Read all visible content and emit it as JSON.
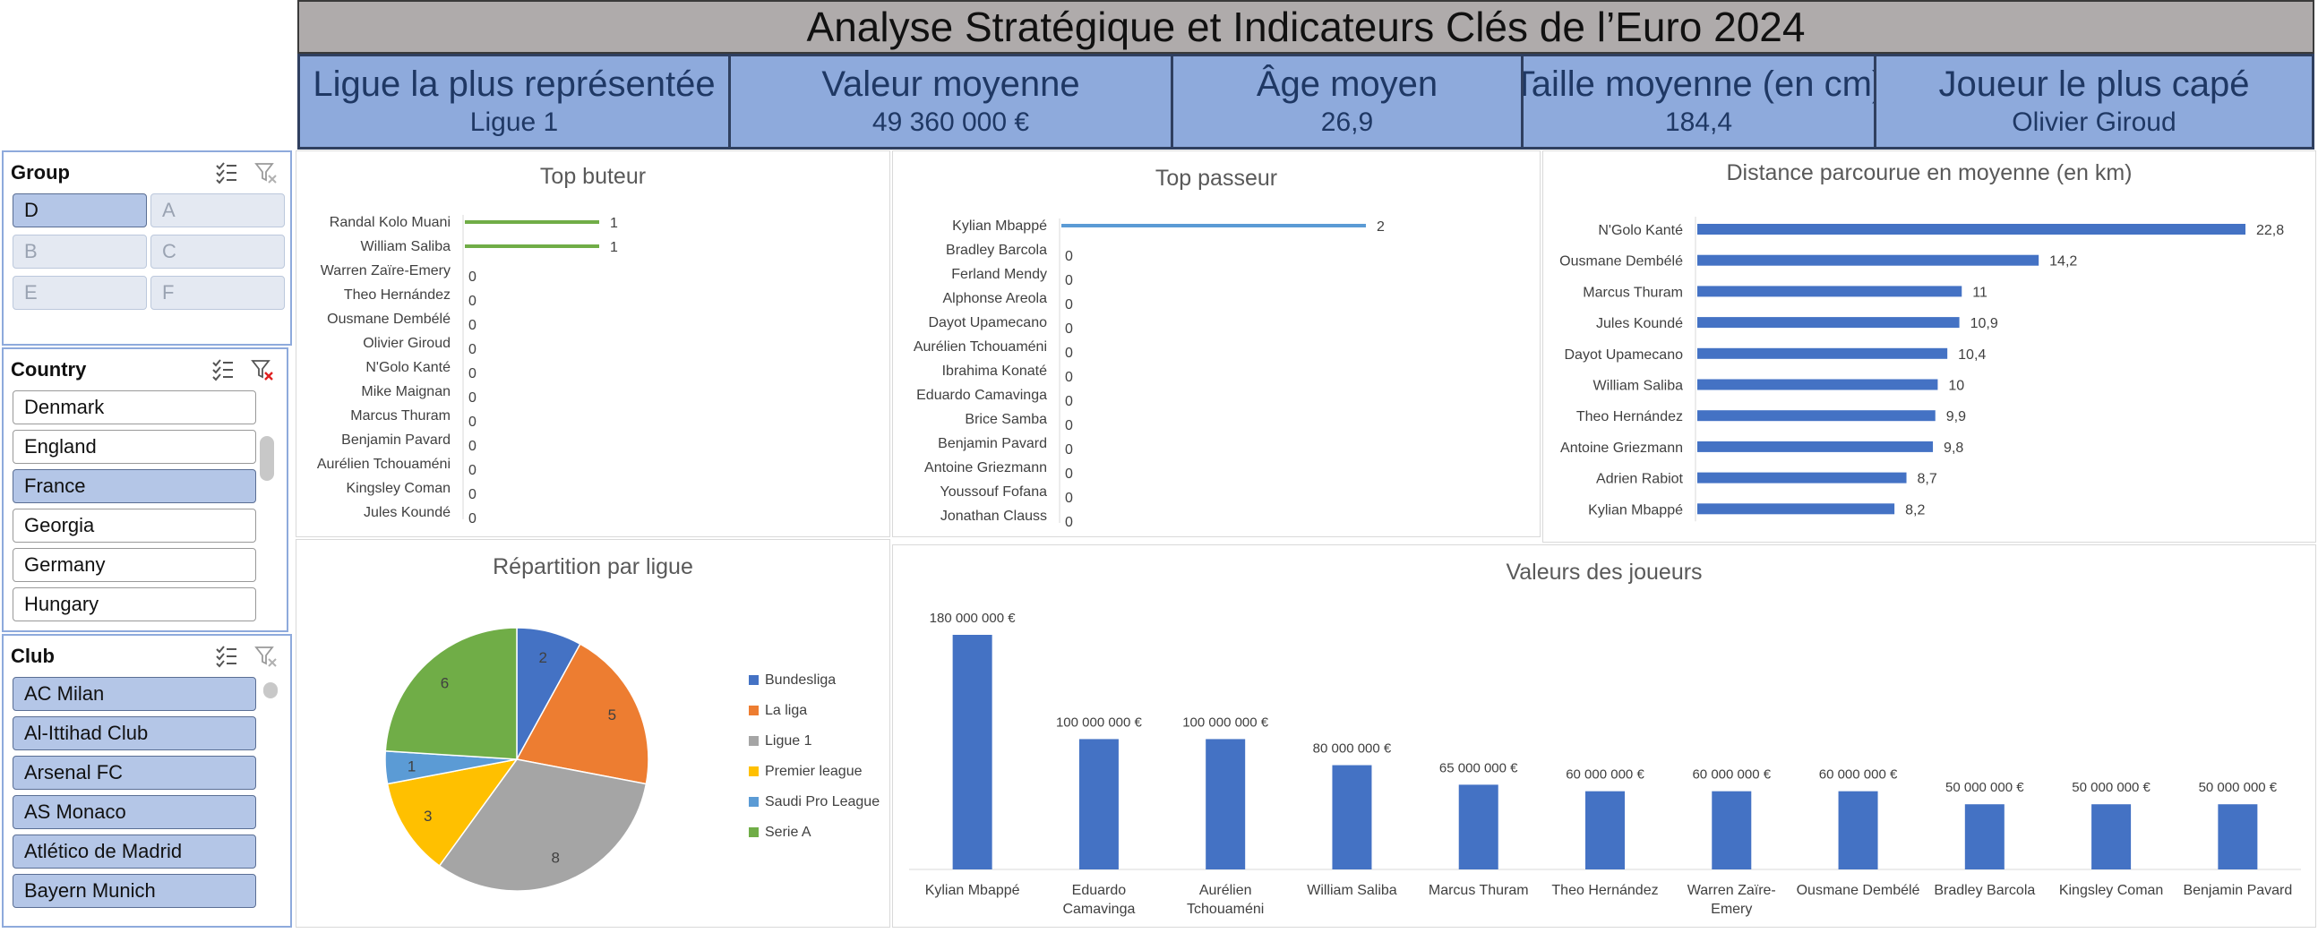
{
  "header": {
    "title": "Analyse Stratégique et Indicateurs Clés de l’Euro 2024"
  },
  "kpis": [
    {
      "label": "Ligue la plus représentée",
      "value": "Ligue 1"
    },
    {
      "label": "Valeur moyenne",
      "value": "49 360 000 €"
    },
    {
      "label": "Âge moyen",
      "value": "26,9"
    },
    {
      "label": "Taille moyenne (en cm)",
      "value": "184,4"
    },
    {
      "label": "Joueur le plus capé",
      "value": "Olivier Giroud"
    }
  ],
  "slicers": {
    "group": {
      "title": "Group",
      "items": [
        {
          "label": "D",
          "selected": true
        },
        {
          "label": "A",
          "selected": false
        },
        {
          "label": "B",
          "selected": false
        },
        {
          "label": "C",
          "selected": false
        },
        {
          "label": "E",
          "selected": false
        },
        {
          "label": "F",
          "selected": false
        }
      ]
    },
    "country": {
      "title": "Country",
      "items": [
        {
          "label": "Denmark",
          "selected": false
        },
        {
          "label": "England",
          "selected": false
        },
        {
          "label": "France",
          "selected": true
        },
        {
          "label": "Georgia",
          "selected": false
        },
        {
          "label": "Germany",
          "selected": false
        },
        {
          "label": "Hungary",
          "selected": false
        }
      ]
    },
    "club": {
      "title": "Club",
      "items": [
        {
          "label": "AC Milan",
          "selected": true
        },
        {
          "label": "Al-Ittihad Club",
          "selected": true
        },
        {
          "label": "Arsenal FC",
          "selected": true
        },
        {
          "label": "AS Monaco",
          "selected": true
        },
        {
          "label": "Atlético de Madrid",
          "selected": true
        },
        {
          "label": "Bayern Munich",
          "selected": true
        }
      ]
    },
    "icons": {
      "multi_select": "multi-select-icon",
      "clear_filter": "clear-filter-icon"
    }
  },
  "colors": {
    "header_bg": "#afabab",
    "kpi_bg": "#8eaadc",
    "kpi_text": "#1f3864",
    "bar_blue": "#4472c4",
    "bar_green": "#70ad47",
    "line_blue": "#5b9bd5",
    "slicer_selected": "#b4c6e7"
  },
  "chart_data": [
    {
      "id": "top-buteur",
      "type": "bar",
      "title": "Top buteur",
      "categories": [
        "Randal Kolo Muani",
        "William Saliba",
        "Warren Zaïre-Emery",
        "Theo Hernández",
        "Ousmane Dembélé",
        "Olivier Giroud",
        "N'Golo Kanté",
        "Mike Maignan",
        "Marcus Thuram",
        "Benjamin Pavard",
        "Aurélien Tchouaméni",
        "Kingsley Coman",
        "Jules Koundé"
      ],
      "values": [
        1,
        1,
        0,
        0,
        0,
        0,
        0,
        0,
        0,
        0,
        0,
        0,
        0
      ],
      "orientation": "horizontal",
      "color": "#70ad47"
    },
    {
      "id": "top-passeur",
      "type": "bar",
      "title": "Top passeur",
      "categories": [
        "Kylian Mbappé",
        "Bradley Barcola",
        "Ferland Mendy",
        "Alphonse Areola",
        "Dayot Upamecano",
        "Aurélien Tchouaméni",
        "Ibrahima Konaté",
        "Eduardo Camavinga",
        "Brice Samba",
        "Benjamin Pavard",
        "Antoine Griezmann",
        "Youssouf Fofana",
        "Jonathan Clauss"
      ],
      "values": [
        2,
        0,
        0,
        0,
        0,
        0,
        0,
        0,
        0,
        0,
        0,
        0,
        0
      ],
      "orientation": "horizontal",
      "color": "#5b9bd5"
    },
    {
      "id": "distance",
      "type": "bar",
      "title": "Distance parcourue en moyenne (en km)",
      "categories": [
        "N'Golo Kanté",
        "Ousmane Dembélé",
        "Marcus Thuram",
        "Jules Koundé",
        "Dayot Upamecano",
        "William Saliba",
        "Theo Hernández",
        "Antoine Griezmann",
        "Adrien Rabiot",
        "Kylian Mbappé"
      ],
      "values": [
        22.8,
        14.2,
        11,
        10.9,
        10.4,
        10,
        9.9,
        9.8,
        8.7,
        8.2
      ],
      "labels": [
        "22,8",
        "14,2",
        "11",
        "10,9",
        "10,4",
        "10",
        "9,9",
        "9,8",
        "8,7",
        "8,2"
      ],
      "orientation": "horizontal",
      "color": "#4472c4"
    },
    {
      "id": "repartition",
      "type": "pie",
      "title": "Répartition par ligue",
      "categories": [
        "Bundesliga",
        "La liga",
        "Ligue 1",
        "Premier league",
        "Saudi Pro League",
        "Serie A"
      ],
      "values": [
        2,
        5,
        8,
        3,
        1,
        6
      ],
      "colors": [
        "#4472c4",
        "#ed7d31",
        "#a5a5a5",
        "#ffc000",
        "#5b9bd5",
        "#70ad47"
      ],
      "legend": "right"
    },
    {
      "id": "valeurs",
      "type": "bar",
      "title": "Valeurs des joueurs",
      "categories": [
        "Kylian Mbappé",
        "Eduardo Camavinga",
        "Aurélien Tchouaméni",
        "William Saliba",
        "Marcus Thuram",
        "Theo Hernández",
        "Warren Zaïre-Emery",
        "Ousmane Dembélé",
        "Bradley Barcola",
        "Kingsley Coman",
        "Benjamin Pavard"
      ],
      "values": [
        180000000,
        100000000,
        100000000,
        80000000,
        65000000,
        60000000,
        60000000,
        60000000,
        50000000,
        50000000,
        50000000
      ],
      "labels": [
        "180 000 000 €",
        "100 000 000 €",
        "100 000 000 €",
        "80 000 000 €",
        "65 000 000 €",
        "60 000 000 €",
        "60 000 000 €",
        "60 000 000 €",
        "50 000 000 €",
        "50 000 000 €",
        "50 000 000 €"
      ],
      "orientation": "vertical",
      "color": "#4472c4"
    }
  ]
}
